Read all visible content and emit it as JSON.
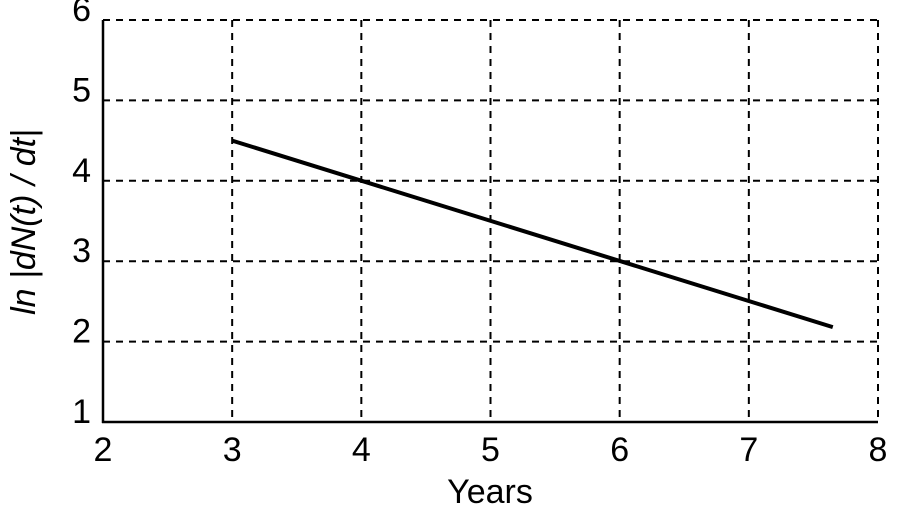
{
  "chart_data": {
    "type": "line",
    "x_label": "Years",
    "y_label": "ln |dN(t) / dt|",
    "x": [
      3,
      7.65
    ],
    "series": [
      {
        "color": "#000000",
        "values": [
          4.5,
          2.18
        ]
      }
    ],
    "xlim": [
      2,
      8
    ],
    "xticks": [
      2,
      3,
      4,
      5,
      6,
      7,
      8
    ],
    "ylim": [
      1,
      6
    ],
    "yticks": [
      1,
      2,
      3,
      4,
      5,
      6
    ],
    "grid": true
  }
}
